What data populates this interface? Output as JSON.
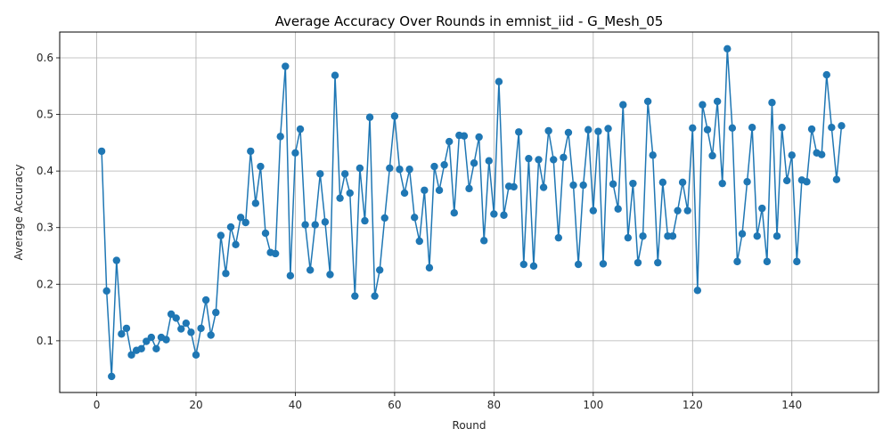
{
  "colors": {
    "series": "#1f77b4",
    "grid": "#b0b0b0",
    "axis": "#000000"
  },
  "chart_data": {
    "type": "line",
    "title": "Average Accuracy Over Rounds in emnist_iid - G_Mesh_05",
    "xlabel": "Round",
    "ylabel": "Average Accuracy",
    "xlim": [
      -7.45,
      157.45
    ],
    "ylim": [
      0.0086,
      0.6456
    ],
    "xticks": [
      0,
      20,
      40,
      60,
      80,
      100,
      120,
      140
    ],
    "yticks": [
      0.1,
      0.2,
      0.3,
      0.4,
      0.5,
      0.6
    ],
    "ytick_labels": [
      "0.1",
      "0.2",
      "0.3",
      "0.4",
      "0.5",
      "0.6"
    ],
    "grid": true,
    "markers": true,
    "x_start": 1,
    "x_step": 1,
    "series": [
      {
        "values": [
          0.435,
          0.188,
          0.037,
          0.242,
          0.112,
          0.122,
          0.075,
          0.083,
          0.086,
          0.099,
          0.106,
          0.086,
          0.106,
          0.102,
          0.147,
          0.14,
          0.121,
          0.131,
          0.115,
          0.075,
          0.122,
          0.172,
          0.11,
          0.15,
          0.286,
          0.219,
          0.301,
          0.27,
          0.318,
          0.309,
          0.435,
          0.343,
          0.408,
          0.29,
          0.256,
          0.254,
          0.461,
          0.585,
          0.215,
          0.432,
          0.474,
          0.305,
          0.225,
          0.305,
          0.395,
          0.31,
          0.217,
          0.569,
          0.352,
          0.395,
          0.361,
          0.179,
          0.405,
          0.312,
          0.495,
          0.179,
          0.225,
          0.317,
          0.405,
          0.497,
          0.403,
          0.361,
          0.403,
          0.318,
          0.276,
          0.366,
          0.229,
          0.408,
          0.366,
          0.411,
          0.452,
          0.326,
          0.463,
          0.462,
          0.369,
          0.414,
          0.46,
          0.277,
          0.418,
          0.324,
          0.558,
          0.322,
          0.373,
          0.372,
          0.469,
          0.235,
          0.422,
          0.232,
          0.42,
          0.371,
          0.471,
          0.42,
          0.282,
          0.424,
          0.468,
          0.375,
          0.235,
          0.375,
          0.473,
          0.33,
          0.47,
          0.236,
          0.475,
          0.377,
          0.333,
          0.517,
          0.282,
          0.378,
          0.238,
          0.285,
          0.523,
          0.428,
          0.238,
          0.38,
          0.285,
          0.285,
          0.33,
          0.38,
          0.33,
          0.476,
          0.189,
          0.517,
          0.473,
          0.427,
          0.523,
          0.378,
          0.616,
          0.476,
          0.24,
          0.289,
          0.381,
          0.477,
          0.285,
          0.334,
          0.24,
          0.521,
          0.285,
          0.477,
          0.383,
          0.428,
          0.24,
          0.384,
          0.381,
          0.474,
          0.432,
          0.429,
          0.57,
          0.477,
          0.385,
          0.48
        ]
      }
    ]
  }
}
